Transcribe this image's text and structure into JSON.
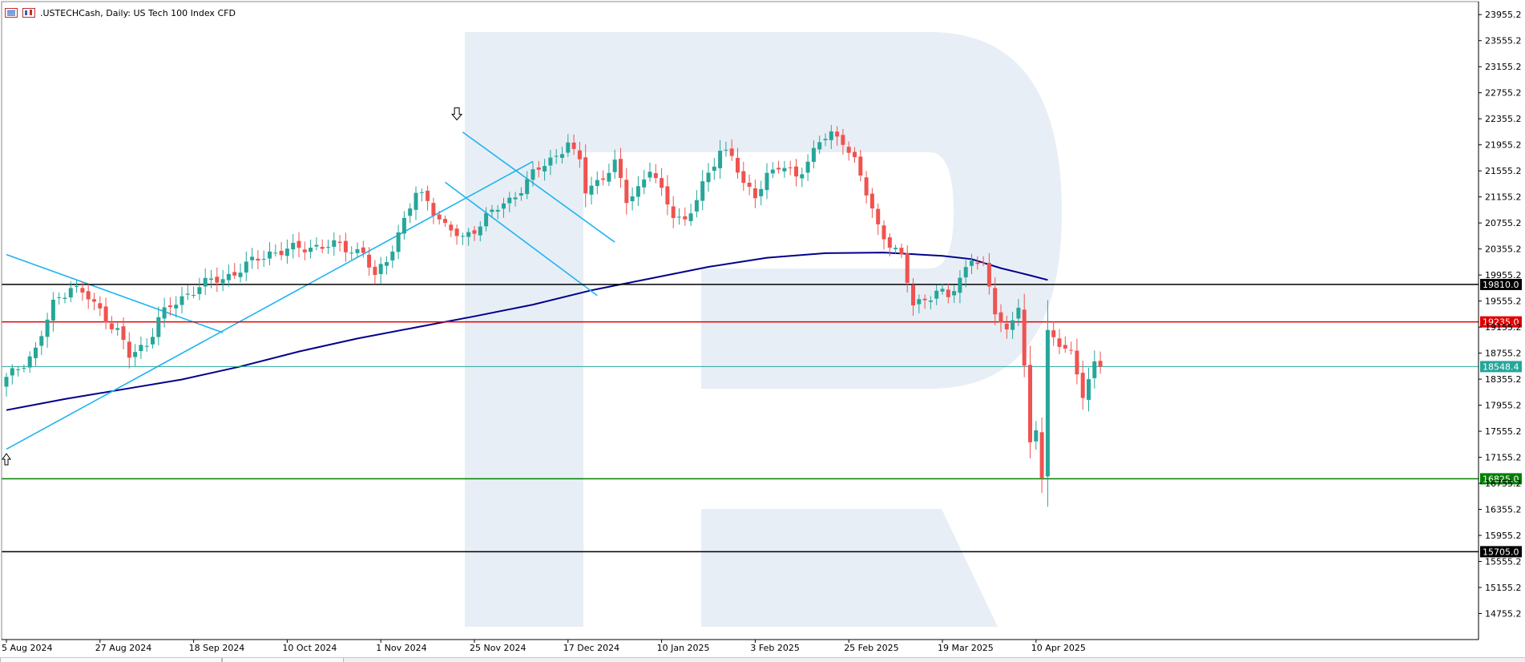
{
  "header": {
    "title": ".USTECHCash, Daily:  US Tech 100 Index CFD",
    "icon_left": "list-icon",
    "icon_right": "candles-icon"
  },
  "colors": {
    "bull": "#26a69a",
    "bear": "#ef5350",
    "ma": "#00008b",
    "trend": "#1eb4f0",
    "level_black": "#000000",
    "level_red": "#e00000",
    "level_green": "#008000",
    "current_price": "#26a69a",
    "watermark": "#e8eef5",
    "axis": "#000000"
  },
  "chart_data": {
    "type": "candlestick",
    "symbol": ".USTECHCash",
    "timeframe": "Daily",
    "instrument": "US Tech 100 Index CFD",
    "ylim": [
      14355.2,
      24155.2
    ],
    "y_ticks": [
      "23955.2",
      "23555.2",
      "23155.2",
      "22755.2",
      "22355.2",
      "21955.2",
      "21555.2",
      "21155.2",
      "20755.2",
      "20355.2",
      "19955.2",
      "19555.2",
      "19155.2",
      "18755.2",
      "18355.2",
      "17955.2",
      "17555.2",
      "17155.2",
      "16755.2",
      "16355.2",
      "15955.2",
      "15555.2",
      "15155.2",
      "14755.2"
    ],
    "x_ticks": [
      {
        "index": 0,
        "label": "5 Aug 2024"
      },
      {
        "index": 16,
        "label": "27 Aug 2024"
      },
      {
        "index": 32,
        "label": "18 Sep 2024"
      },
      {
        "index": 48,
        "label": "10 Oct 2024"
      },
      {
        "index": 64,
        "label": "1 Nov 2024"
      },
      {
        "index": 80,
        "label": "25 Nov 2024"
      },
      {
        "index": 96,
        "label": "17 Dec 2024"
      },
      {
        "index": 112,
        "label": "10 Jan 2025"
      },
      {
        "index": 128,
        "label": "3 Feb 2025"
      },
      {
        "index": 144,
        "label": "25 Feb 2025"
      },
      {
        "index": 160,
        "label": "19 Mar 2025"
      },
      {
        "index": 176,
        "label": "10 Apr 2025"
      }
    ],
    "levels": [
      {
        "name": "resistance-upper",
        "value": 19810.0,
        "label": "19810.0",
        "color": "#000000"
      },
      {
        "name": "resistance",
        "value": 19235.0,
        "label": "19235.0",
        "color": "#e00000"
      },
      {
        "name": "current-price",
        "value": 18548.4,
        "label": "18548.4",
        "color": "#26a69a"
      },
      {
        "name": "support",
        "value": 16825.0,
        "label": "16825.0",
        "color": "#008000"
      },
      {
        "name": "support-lower",
        "value": 15705.0,
        "label": "15705.0",
        "color": "#000000"
      }
    ],
    "ohlc_keypoints": [
      [
        0,
        18350
      ],
      [
        5,
        18800
      ],
      [
        8,
        19500
      ],
      [
        11,
        19800
      ],
      [
        14,
        19600
      ],
      [
        17,
        19300
      ],
      [
        19,
        19100
      ],
      [
        21,
        18700
      ],
      [
        24,
        18900
      ],
      [
        26,
        19300
      ],
      [
        30,
        19600
      ],
      [
        33,
        19800
      ],
      [
        37,
        19900
      ],
      [
        41,
        20100
      ],
      [
        45,
        20300
      ],
      [
        49,
        20350
      ],
      [
        53,
        20400
      ],
      [
        57,
        20400
      ],
      [
        61,
        20300
      ],
      [
        63,
        19900
      ],
      [
        65,
        20200
      ],
      [
        68,
        20800
      ],
      [
        70,
        21200
      ],
      [
        72,
        21100
      ],
      [
        75,
        20700
      ],
      [
        78,
        20500
      ],
      [
        82,
        20850
      ],
      [
        86,
        21100
      ],
      [
        90,
        21500
      ],
      [
        94,
        21800
      ],
      [
        96,
        22000
      ],
      [
        97,
        21800
      ],
      [
        98,
        21700
      ],
      [
        99,
        21250
      ],
      [
        101,
        21400
      ],
      [
        104,
        21650
      ],
      [
        106,
        21100
      ],
      [
        108,
        21300
      ],
      [
        110,
        21600
      ],
      [
        112,
        21200
      ],
      [
        114,
        20900
      ],
      [
        116,
        20800
      ],
      [
        118,
        21100
      ],
      [
        120,
        21500
      ],
      [
        122,
        21900
      ],
      [
        124,
        21800
      ],
      [
        126,
        21300
      ],
      [
        128,
        21200
      ],
      [
        130,
        21500
      ],
      [
        132,
        21600
      ],
      [
        135,
        21500
      ],
      [
        137,
        21700
      ],
      [
        139,
        22000
      ],
      [
        141,
        22100
      ],
      [
        143,
        22050
      ],
      [
        145,
        21700
      ],
      [
        147,
        21200
      ],
      [
        149,
        20700
      ],
      [
        151,
        20450
      ],
      [
        153,
        20200
      ],
      [
        155,
        19500
      ],
      [
        157,
        19600
      ],
      [
        159,
        19700
      ],
      [
        161,
        19600
      ],
      [
        163,
        19900
      ],
      [
        165,
        20250
      ],
      [
        167,
        20050
      ],
      [
        169,
        19400
      ],
      [
        171,
        19100
      ],
      [
        173,
        19500
      ],
      [
        174,
        18500
      ],
      [
        175,
        17300
      ],
      [
        176,
        17600
      ],
      [
        177,
        16900
      ],
      [
        178,
        19100
      ],
      [
        180,
        18900
      ],
      [
        182,
        18700
      ],
      [
        184,
        18150
      ],
      [
        186,
        18600
      ],
      [
        187,
        18548.4
      ]
    ],
    "moving_average": [
      [
        0,
        17880
      ],
      [
        10,
        18050
      ],
      [
        20,
        18200
      ],
      [
        30,
        18350
      ],
      [
        40,
        18550
      ],
      [
        50,
        18780
      ],
      [
        60,
        18980
      ],
      [
        70,
        19150
      ],
      [
        80,
        19320
      ],
      [
        90,
        19500
      ],
      [
        100,
        19720
      ],
      [
        110,
        19900
      ],
      [
        120,
        20080
      ],
      [
        130,
        20220
      ],
      [
        140,
        20290
      ],
      [
        150,
        20300
      ],
      [
        160,
        20250
      ],
      [
        165,
        20200
      ],
      [
        170,
        20060
      ],
      [
        175,
        19950
      ],
      [
        178,
        19880
      ]
    ],
    "trendlines": [
      {
        "from": [
          0,
          20270
        ],
        "to": [
          37,
          19070
        ]
      },
      {
        "from": [
          0,
          17280
        ],
        "to": [
          90,
          21700
        ]
      },
      {
        "from": [
          75,
          21380
        ],
        "to": [
          101,
          19640
        ]
      },
      {
        "from": [
          78,
          22150
        ],
        "to": [
          104,
          20460
        ]
      }
    ],
    "arrows": [
      {
        "index": 0,
        "value": 17150,
        "kind": "up"
      },
      {
        "index": 77,
        "value": 22400,
        "kind": "down"
      }
    ]
  },
  "bottom_tabs": [
    {
      "name": "tab-1",
      "label": ""
    },
    {
      "name": "tab-2",
      "label": ""
    }
  ]
}
